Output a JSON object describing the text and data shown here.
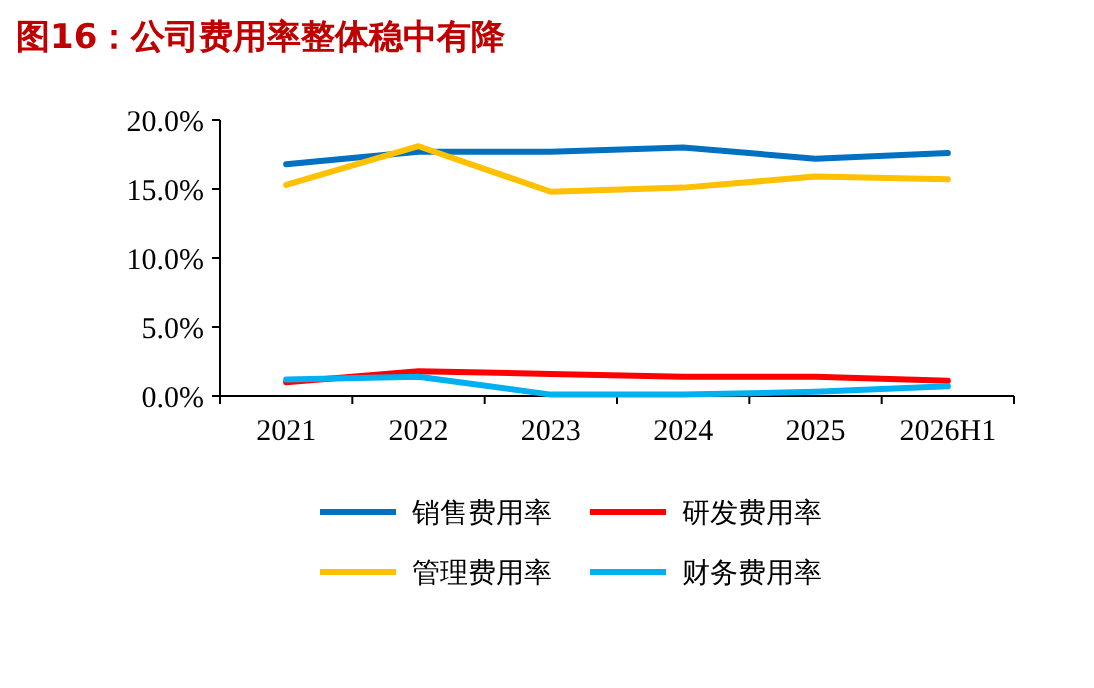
{
  "chart_data": {
    "type": "line",
    "title": "图16：公司费用率整体稳中有降",
    "categories": [
      "2021",
      "2022",
      "2023",
      "2024",
      "2025",
      "2026H1"
    ],
    "series": [
      {
        "name": "销售费用率",
        "color": "#0070c0",
        "values": [
          16.8,
          17.7,
          17.7,
          18.0,
          17.2,
          17.6
        ]
      },
      {
        "name": "研发费用率",
        "color": "#ff0000",
        "values": [
          1.0,
          1.8,
          1.6,
          1.4,
          1.4,
          1.1
        ]
      },
      {
        "name": "管理费用率",
        "color": "#ffc000",
        "values": [
          15.3,
          18.1,
          14.8,
          15.1,
          15.9,
          15.7
        ]
      },
      {
        "name": "财务费用率",
        "color": "#00b0f0",
        "values": [
          1.2,
          1.4,
          0.1,
          0.1,
          0.3,
          0.7
        ]
      }
    ],
    "ylim": [
      0,
      20
    ],
    "yticks": [
      {
        "value": 0,
        "label": "0.0%"
      },
      {
        "value": 5,
        "label": "5.0%"
      },
      {
        "value": 10,
        "label": "10.0%"
      },
      {
        "value": 15,
        "label": "15.0%"
      },
      {
        "value": 20,
        "label": "20.0%"
      }
    ],
    "legend": "bottom",
    "grid": false,
    "marker": "none",
    "line_style": "solid"
  }
}
